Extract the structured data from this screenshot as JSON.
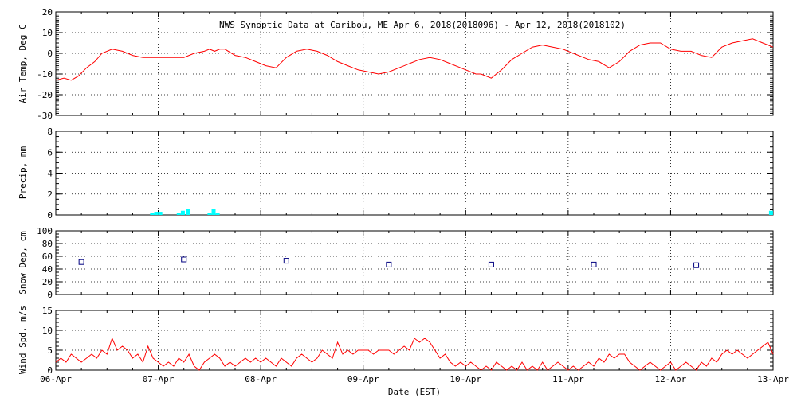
{
  "title": "NWS Synoptic Data at Caribou, ME   Apr  6, 2018(2018096) - Apr 12, 2018(2018102)",
  "xlabel": "Date (EST)",
  "x_ticks": [
    "06-Apr",
    "07-Apr",
    "08-Apr",
    "09-Apr",
    "10-Apr",
    "11-Apr",
    "12-Apr",
    "13-Apr"
  ],
  "colors": {
    "temp": "#ff0000",
    "precip": "#00ffff",
    "snow": "#000080",
    "wind": "#ff0000"
  },
  "chart_data": [
    {
      "type": "line",
      "ylabel": "Air Temp, Deg C",
      "ylim": [
        -30,
        20
      ],
      "y_ticks": [
        "-30",
        "-20",
        "-10",
        "0",
        "10",
        "20"
      ],
      "xlim": [
        0,
        7
      ],
      "x_unit": "days since 06-Apr 00:00 EST",
      "series": [
        {
          "x": [
            0,
            0.08,
            0.15,
            0.22,
            0.3,
            0.38,
            0.45,
            0.55,
            0.65,
            0.75,
            0.85,
            0.95,
            1.05,
            1.15,
            1.25,
            1.35,
            1.45,
            1.5,
            1.55,
            1.6,
            1.65,
            1.75,
            1.85,
            1.95,
            2.05,
            2.15,
            2.25,
            2.35,
            2.45,
            2.55,
            2.65,
            2.75,
            2.85,
            2.95,
            3.05,
            3.15,
            3.25,
            3.35,
            3.45,
            3.55,
            3.65,
            3.75,
            3.85,
            3.95,
            4.0,
            4.05,
            4.1,
            4.15,
            4.2,
            4.25,
            4.35,
            4.45,
            4.55,
            4.65,
            4.75,
            4.85,
            4.95,
            5.05,
            5.15,
            5.2,
            5.3,
            5.4,
            5.5,
            5.6,
            5.7,
            5.8,
            5.9,
            6.0,
            6.1,
            6.2,
            6.3,
            6.4,
            6.5,
            6.6,
            6.7,
            6.8,
            6.9,
            7.0
          ],
          "y": [
            -13,
            -12,
            -13,
            -11,
            -7,
            -4,
            0,
            2,
            1,
            -1,
            -2,
            -2,
            -2,
            -2,
            -2,
            0,
            1,
            2,
            1,
            2,
            2,
            -1,
            -2,
            -4,
            -6,
            -7,
            -2,
            1,
            2,
            1,
            -1,
            -4,
            -6,
            -8,
            -9,
            -10,
            -9,
            -7,
            -5,
            -3,
            -2,
            -3,
            -5,
            -7,
            -8,
            -9,
            -10,
            -10,
            -11,
            -12,
            -8,
            -3,
            0,
            3,
            4,
            3,
            2,
            0,
            -2,
            -3,
            -4,
            -7,
            -4,
            1,
            4,
            5,
            5,
            2,
            1,
            1,
            -1,
            -2,
            3,
            5,
            6,
            7,
            5,
            3
          ]
        }
      ]
    },
    {
      "type": "bar",
      "ylabel": "Precip, mm",
      "ylim": [
        0,
        8
      ],
      "y_ticks": [
        "0",
        "2",
        "4",
        "6",
        "8"
      ],
      "x": [
        0.94,
        0.98,
        1.02,
        1.2,
        1.24,
        1.29,
        1.5,
        1.54,
        1.58,
        6.98
      ],
      "values": [
        0.2,
        0.3,
        0.3,
        0.2,
        0.4,
        0.6,
        0.2,
        0.6,
        0.2,
        0.4
      ]
    },
    {
      "type": "scatter",
      "ylabel": "Snow Dep, cm",
      "ylim": [
        0,
        100
      ],
      "y_ticks": [
        "0",
        "20",
        "40",
        "60",
        "80",
        "100"
      ],
      "x": [
        0.25,
        1.25,
        2.25,
        3.25,
        4.25,
        5.25,
        6.25
      ],
      "values": [
        51,
        55,
        53,
        47,
        47,
        47,
        46
      ]
    },
    {
      "type": "line",
      "ylabel": "Wind Spd, m/s",
      "ylim": [
        0,
        15
      ],
      "y_ticks": [
        "0",
        "5",
        "10",
        "15"
      ],
      "series": [
        {
          "x": [
            0,
            0.05,
            0.1,
            0.15,
            0.2,
            0.25,
            0.3,
            0.35,
            0.4,
            0.45,
            0.5,
            0.55,
            0.6,
            0.65,
            0.7,
            0.75,
            0.8,
            0.85,
            0.9,
            0.95,
            1.0,
            1.05,
            1.1,
            1.15,
            1.2,
            1.25,
            1.3,
            1.35,
            1.4,
            1.45,
            1.5,
            1.55,
            1.6,
            1.65,
            1.7,
            1.75,
            1.8,
            1.85,
            1.9,
            1.95,
            2.0,
            2.05,
            2.1,
            2.15,
            2.2,
            2.25,
            2.3,
            2.35,
            2.4,
            2.45,
            2.5,
            2.55,
            2.6,
            2.65,
            2.7,
            2.75,
            2.8,
            2.85,
            2.9,
            2.95,
            3.0,
            3.05,
            3.1,
            3.15,
            3.2,
            3.25,
            3.3,
            3.35,
            3.4,
            3.45,
            3.5,
            3.55,
            3.6,
            3.65,
            3.7,
            3.75,
            3.8,
            3.85,
            3.9,
            3.95,
            4.0,
            4.05,
            4.1,
            4.15,
            4.2,
            4.25,
            4.3,
            4.35,
            4.4,
            4.45,
            4.5,
            4.55,
            4.6,
            4.65,
            4.7,
            4.75,
            4.8,
            4.85,
            4.9,
            4.95,
            5.0,
            5.05,
            5.1,
            5.15,
            5.2,
            5.25,
            5.3,
            5.35,
            5.4,
            5.45,
            5.5,
            5.55,
            5.6,
            5.65,
            5.7,
            5.75,
            5.8,
            5.85,
            5.9,
            5.95,
            6.0,
            6.05,
            6.1,
            6.15,
            6.2,
            6.25,
            6.3,
            6.35,
            6.4,
            6.45,
            6.5,
            6.55,
            6.6,
            6.65,
            6.7,
            6.75,
            6.8,
            6.85,
            6.9,
            6.95,
            7.0
          ],
          "y": [
            2,
            3,
            2,
            4,
            3,
            2,
            3,
            4,
            3,
            5,
            4,
            8,
            5,
            6,
            5,
            3,
            4,
            2,
            6,
            3,
            2,
            1,
            2,
            1,
            3,
            2,
            4,
            1,
            0,
            2,
            3,
            4,
            3,
            1,
            2,
            1,
            2,
            3,
            2,
            3,
            2,
            3,
            2,
            1,
            3,
            2,
            1,
            3,
            4,
            3,
            2,
            3,
            5,
            4,
            3,
            7,
            4,
            5,
            4,
            5,
            5,
            5,
            4,
            5,
            5,
            5,
            4,
            5,
            6,
            5,
            8,
            7,
            8,
            7,
            5,
            3,
            4,
            2,
            1,
            2,
            1,
            2,
            1,
            0,
            1,
            0,
            2,
            1,
            0,
            1,
            0,
            2,
            0,
            1,
            0,
            2,
            0,
            1,
            2,
            1,
            0,
            1,
            0,
            1,
            2,
            1,
            3,
            2,
            4,
            3,
            4,
            4,
            2,
            1,
            0,
            1,
            2,
            1,
            0,
            1,
            2,
            0,
            1,
            2,
            1,
            0,
            2,
            1,
            3,
            2,
            4,
            5,
            4,
            5,
            4,
            3,
            4,
            5,
            6,
            7,
            4
          ]
        }
      ]
    }
  ]
}
